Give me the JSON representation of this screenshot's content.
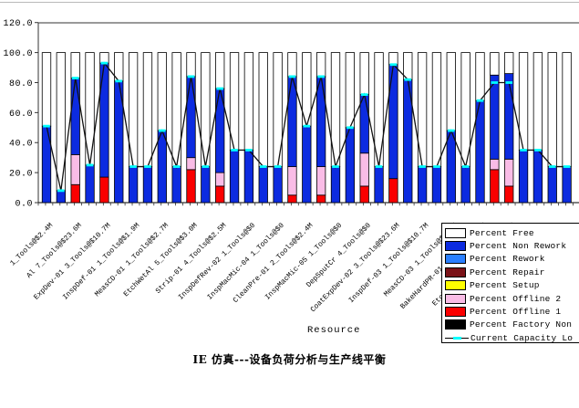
{
  "chart_data": {
    "type": "bar",
    "subtype": "stacked-100-with-capacity-line",
    "title": "IE 仿真---设备负荷分析与生产线平衡",
    "xlabel": "Resource",
    "ylim": [
      0,
      120
    ],
    "ytick_labels": [
      "0.0",
      "20.0",
      "40.0",
      "60.0",
      "80.0",
      "100.0",
      "120.0"
    ],
    "grid": "none",
    "label_every": 2,
    "tick_labels": [
      "1_Tools@$2.4M",
      "Al 7_Tools@$23.6M",
      "ExpDev-01 3_Tools@$10.7M",
      "InspDef-01 1_Tools@$1.9M",
      "MeasCD-01 1_Tools@$2.7M",
      "EtchWetAl 5_Tools@$3.0M",
      "Strip-01 4_Tools@$2.5M",
      "InspDefRev-02 1_Tools@$0",
      "InspMacMic-04 1_Tools@$0",
      "CleanPre-01 2_Tools@$2.4M",
      "InspMacMic-05 1_Tools@$0",
      "DepSputCr 4_Tools@$0",
      "CoatExpDev-02 3_Tools@$23.6M",
      "InspDef-03 1_Tools@$10.7M",
      "MeasCD-03 1_Tools@$1.9M",
      "BakeHardPR-01 2_Tools@$1.9M",
      "EtchPlasmaAl 2_Tools@$3.0M"
    ],
    "bars_note": "per bar: [offline1_red, offline2_pink, total_utilized, capacity_line]; non_rework_blue = total_utilized - red - pink; free_white = 100 - total_utilized",
    "bars": [
      [
        0,
        0,
        51,
        51
      ],
      [
        0,
        0,
        8,
        8
      ],
      [
        12,
        20,
        83,
        83
      ],
      [
        0,
        0,
        25,
        25
      ],
      [
        17,
        0,
        93,
        93
      ],
      [
        0,
        0,
        81,
        81
      ],
      [
        0,
        0,
        24,
        24
      ],
      [
        0,
        0,
        24,
        24
      ],
      [
        0,
        0,
        48,
        48
      ],
      [
        0,
        0,
        24,
        24
      ],
      [
        22,
        8,
        84,
        84
      ],
      [
        0,
        0,
        24,
        24
      ],
      [
        11,
        9,
        76,
        76
      ],
      [
        0,
        0,
        35,
        35
      ],
      [
        0,
        0,
        35,
        35
      ],
      [
        0,
        0,
        24,
        24
      ],
      [
        0,
        0,
        24,
        24
      ],
      [
        5,
        19,
        84,
        84
      ],
      [
        0,
        0,
        51,
        51
      ],
      [
        5,
        19,
        84,
        84
      ],
      [
        0,
        0,
        24,
        24
      ],
      [
        0,
        0,
        50,
        50
      ],
      [
        11,
        22,
        72,
        72
      ],
      [
        0,
        0,
        24,
        24
      ],
      [
        16,
        0,
        92,
        92
      ],
      [
        0,
        0,
        82,
        82
      ],
      [
        0,
        0,
        24,
        24
      ],
      [
        0,
        0,
        24,
        24
      ],
      [
        0,
        0,
        48,
        48
      ],
      [
        0,
        0,
        24,
        24
      ],
      [
        0,
        0,
        68,
        68
      ],
      [
        22,
        7,
        85,
        80
      ],
      [
        11,
        18,
        86,
        80
      ],
      [
        0,
        0,
        35,
        35
      ],
      [
        0,
        0,
        35,
        35
      ],
      [
        0,
        0,
        24,
        24
      ],
      [
        0,
        0,
        24,
        24
      ]
    ],
    "colors": {
      "free": "#ffffff",
      "non_rework": "#0c2be0",
      "rework": "#2a7fff",
      "repair": "#7a1217",
      "setup": "#ffff00",
      "offline2": "#f9bce6",
      "offline1": "#fa0000",
      "factory_non": "#000000",
      "line": "#111111",
      "marker": "#00ffff",
      "bar_outline": "#000000"
    },
    "legend": {
      "position": "right-bottom-overlay",
      "entries": [
        {
          "label": "Percent Free",
          "swatch": "#ffffff"
        },
        {
          "label": "Percent Non Rework",
          "swatch": "#0c2be0"
        },
        {
          "label": "Percent Rework",
          "swatch": "#2a7fff"
        },
        {
          "label": "Percent Repair",
          "swatch": "#7a1217"
        },
        {
          "label": "Percent Setup",
          "swatch": "#ffff00"
        },
        {
          "label": "Percent Offline 2",
          "swatch": "#f9bce6"
        },
        {
          "label": "Percent Offline 1",
          "swatch": "#fa0000"
        },
        {
          "label": "Percent Factory Non",
          "swatch": "#000000"
        },
        {
          "label": "Current Capacity Lo",
          "type": "line",
          "swatch": "#00ffff"
        }
      ]
    }
  }
}
